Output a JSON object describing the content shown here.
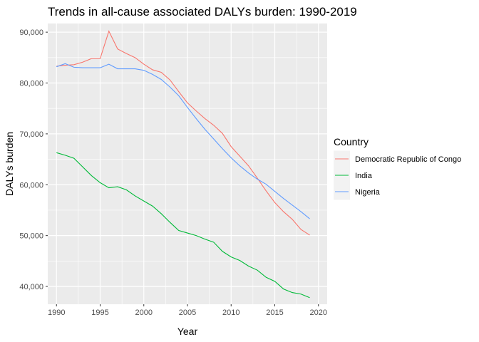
{
  "chart_data": {
    "type": "line",
    "title": "Trends in all-cause associated DALYs burden: 1990-2019",
    "xlabel": "Year",
    "ylabel": "DALYs burden",
    "xlim": [
      1989,
      2021
    ],
    "ylim": [
      36500,
      91700
    ],
    "x_ticks": [
      1990,
      1995,
      2000,
      2005,
      2010,
      2015,
      2020
    ],
    "y_ticks": [
      40000,
      50000,
      60000,
      70000,
      80000,
      90000
    ],
    "y_tick_labels": [
      "40,000",
      "50,000",
      "60,000",
      "70,000",
      "80,000",
      "90,000"
    ],
    "grid": true,
    "legend": {
      "title": "Country",
      "position": "right"
    },
    "x": [
      1990,
      1991,
      1992,
      1993,
      1994,
      1995,
      1996,
      1997,
      1998,
      1999,
      2000,
      2001,
      2002,
      2003,
      2004,
      2005,
      2006,
      2007,
      2008,
      2009,
      2010,
      2011,
      2012,
      2013,
      2014,
      2015,
      2016,
      2017,
      2018,
      2019
    ],
    "series": [
      {
        "name": "Democratic Republic of Congo",
        "color": "#F8766D",
        "values": [
          83300,
          83500,
          83600,
          84100,
          84800,
          84800,
          90200,
          86700,
          85800,
          85000,
          83700,
          82600,
          82100,
          80600,
          78300,
          76100,
          74500,
          73000,
          71700,
          70100,
          67500,
          65600,
          63700,
          61300,
          58800,
          56500,
          54700,
          53200,
          51200,
          50100
        ]
      },
      {
        "name": "India",
        "color": "#00BA38",
        "values": [
          66300,
          65800,
          65200,
          63500,
          61800,
          60400,
          59400,
          59600,
          59000,
          57800,
          56800,
          55800,
          54300,
          52600,
          51000,
          50500,
          50000,
          49300,
          48700,
          46900,
          45800,
          45100,
          44000,
          43200,
          41800,
          41000,
          39500,
          38800,
          38500,
          37800
        ]
      },
      {
        "name": "Nigeria",
        "color": "#619CFF",
        "values": [
          83200,
          83800,
          83100,
          83000,
          83000,
          83000,
          83700,
          82800,
          82800,
          82800,
          82500,
          81700,
          80700,
          79200,
          77500,
          75200,
          73000,
          70900,
          69000,
          67100,
          65300,
          63700,
          62300,
          61100,
          60100,
          58700,
          57300,
          56000,
          54700,
          53300
        ]
      }
    ]
  }
}
